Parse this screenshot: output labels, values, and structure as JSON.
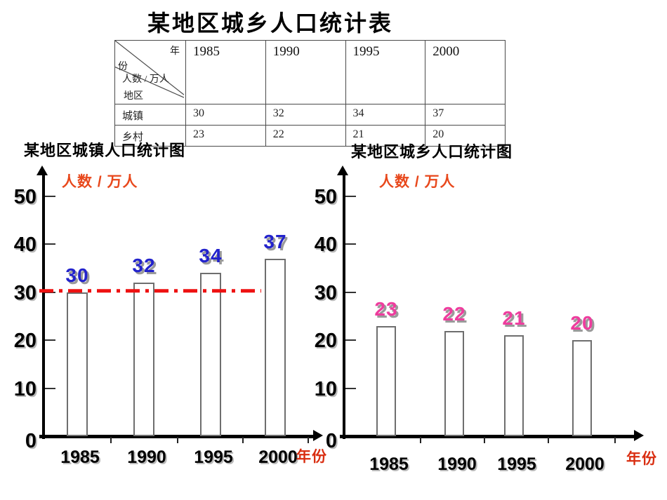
{
  "title": "某地区城乡人口统计表",
  "table": {
    "corner": {
      "year_top": "年",
      "year_bottom": "份",
      "count": "人数 / 万人",
      "region": "地区"
    },
    "years": [
      "1985",
      "1990",
      "1995",
      "2000"
    ],
    "rows": [
      {
        "label": "城镇",
        "values": [
          30,
          32,
          34,
          37
        ]
      },
      {
        "label": "乡村",
        "values": [
          23,
          22,
          21,
          20
        ]
      }
    ]
  },
  "colors": {
    "axis_unit_label": "#e8481c",
    "x_unit_label": "#d92d10",
    "urban_value_label": "#2323cc",
    "rural_value_label": "#ee3d9e",
    "reference_line": "#ee1111",
    "bar_fill": "#ffffff",
    "bar_border": "#6e6e6e"
  },
  "chart_data": [
    {
      "type": "bar",
      "title": "某地区城镇人口统计图",
      "ylabel": "人数 / 万人",
      "xlabel": "年份",
      "categories": [
        "1985",
        "1990",
        "1995",
        "2000"
      ],
      "values": [
        30,
        32,
        34,
        37
      ],
      "ylim": [
        0,
        50
      ],
      "y_ticks": [
        0,
        10,
        20,
        30,
        40,
        50
      ],
      "grid": false,
      "legend": false,
      "value_label_color": "#2323cc",
      "reference_line": {
        "value": 30,
        "color": "#ee1111",
        "style": "dash-dot"
      }
    },
    {
      "type": "bar",
      "title": "某地区城乡人口统计图",
      "ylabel": "人数 / 万人",
      "xlabel": "年份",
      "categories": [
        "1985",
        "1990",
        "1995",
        "2000"
      ],
      "values": [
        23,
        22,
        21,
        20
      ],
      "ylim": [
        0,
        50
      ],
      "y_ticks": [
        0,
        10,
        20,
        30,
        40,
        50
      ],
      "grid": false,
      "legend": false,
      "value_label_color": "#ee3d9e",
      "reference_line": null
    }
  ]
}
